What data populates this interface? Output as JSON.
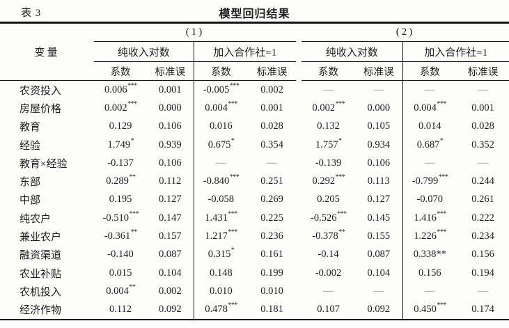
{
  "caption": {
    "label": "表 3",
    "title": "模型回归结果"
  },
  "colors": {
    "background": "#fdfdfc",
    "text": "#1d1d1d",
    "rules": "#121212",
    "dash_gray": "#8b8b8b"
  },
  "table": {
    "variable_header": "变量",
    "groups": [
      {
        "label": "(1)",
        "subgroups": [
          {
            "label": "纯收入对数"
          },
          {
            "label": "加入合作社=1"
          }
        ]
      },
      {
        "label": "(2)",
        "subgroups": [
          {
            "label": "纯收入对数"
          },
          {
            "label": "加入合作社=1"
          }
        ]
      }
    ],
    "stat_headers": [
      "系数",
      "标准误"
    ],
    "dash": "—",
    "rows": [
      {
        "label": "农资投入",
        "cells": [
          "0.006***",
          "0.001",
          "-0.005***",
          "0.002",
          "—",
          "—",
          "—",
          "—"
        ]
      },
      {
        "label": "房屋价格",
        "cells": [
          "0.002***",
          "0.000",
          "0.004***",
          "0.001",
          "0.002***",
          "0.000",
          "0.004***",
          "0.001"
        ]
      },
      {
        "label": "教育",
        "cells": [
          "0.129",
          "0.106",
          "0.016",
          "0.028",
          "0.132",
          "0.105",
          "0.014",
          "0.028"
        ]
      },
      {
        "label": "经验",
        "cells": [
          "1.749*",
          "0.939",
          "0.675*",
          "0.354",
          "1.757*",
          "0.934",
          "0.687*",
          "0.352"
        ]
      },
      {
        "label": "教育×经验",
        "cells": [
          "-0.137",
          "0.106",
          "—",
          "—",
          "-0.139",
          "0.106",
          "—",
          "—"
        ]
      },
      {
        "label": "东部",
        "cells": [
          "0.289**",
          "0.112",
          "-0.840***",
          "0.251",
          "0.292***",
          "0.113",
          "-0.799***",
          "0.244"
        ]
      },
      {
        "label": "中部",
        "cells": [
          "0.195",
          "0.127",
          "-0.058",
          "0.269",
          "0.205",
          "0.127",
          "-0.070",
          "0.261"
        ]
      },
      {
        "label": "纯农户",
        "cells": [
          "-0.510***",
          "0.147",
          "1.431***",
          "0.225",
          "-0.526***",
          "0.145",
          "1.416***",
          "0.222"
        ]
      },
      {
        "label": "兼业农户",
        "cells": [
          "-0.361**",
          "0.157",
          "1.217***",
          "0.236",
          "-0.378**",
          "0.155",
          "1.226***",
          "0.234"
        ]
      },
      {
        "label": "融资渠道",
        "cells": [
          "-0.140",
          "0.087",
          "0.315*",
          "0.161",
          "-0.14",
          "0.087",
          {
            "v": "0.338",
            "stars": "**",
            "inline": true
          },
          "0.156"
        ]
      },
      {
        "label": "农业补贴",
        "cells": [
          "0.015",
          "0.104",
          "0.148",
          "0.199",
          "-0.002",
          "0.104",
          "0.156",
          "0.194"
        ]
      },
      {
        "label": "农机投入",
        "cells": [
          "0.004**",
          "0.002",
          "0.010",
          "0.010",
          "—",
          "—",
          "—",
          "—"
        ]
      },
      {
        "label": "经济作物",
        "cells": [
          "0.112",
          "0.092",
          "0.478***",
          "0.181",
          "0.107",
          "0.092",
          "0.450***",
          "0.174"
        ]
      }
    ]
  },
  "chart_data": {
    "type": "table",
    "title": "模型回归结果",
    "column_groups": [
      "(1) 纯收入对数",
      "(1) 加入合作社=1",
      "(2) 纯收入对数",
      "(2) 加入合作社=1"
    ],
    "columns_per_group": [
      "系数",
      "标准误"
    ],
    "row_variables": [
      "农资投入",
      "房屋价格",
      "教育",
      "经验",
      "教育×经验",
      "东部",
      "中部",
      "纯农户",
      "兼业农户",
      "融资渠道",
      "农业补贴",
      "农机投入",
      "经济作物"
    ]
  }
}
